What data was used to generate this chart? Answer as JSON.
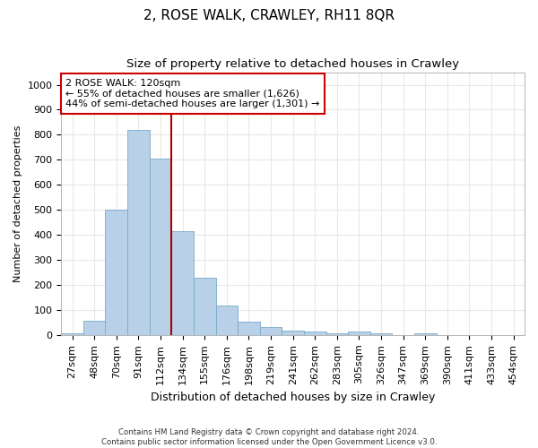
{
  "title": "2, ROSE WALK, CRAWLEY, RH11 8QR",
  "subtitle": "Size of property relative to detached houses in Crawley",
  "xlabel": "Distribution of detached houses by size in Crawley",
  "ylabel": "Number of detached properties",
  "categories": [
    "27sqm",
    "48sqm",
    "70sqm",
    "91sqm",
    "112sqm",
    "134sqm",
    "155sqm",
    "176sqm",
    "198sqm",
    "219sqm",
    "241sqm",
    "262sqm",
    "283sqm",
    "305sqm",
    "326sqm",
    "347sqm",
    "369sqm",
    "390sqm",
    "411sqm",
    "433sqm",
    "454sqm"
  ],
  "values": [
    8,
    57,
    500,
    820,
    705,
    415,
    228,
    117,
    52,
    33,
    16,
    15,
    8,
    15,
    8,
    0,
    8,
    0,
    0,
    0,
    0
  ],
  "bar_color": "#b8d0e8",
  "bar_edge_color": "#7aaac8",
  "property_line_x": 4.5,
  "property_line_color": "#aa0000",
  "annotation_line1": "2 ROSE WALK: 120sqm",
  "annotation_line2": "← 55% of detached houses are smaller (1,626)",
  "annotation_line3": "44% of semi-detached houses are larger (1,301) →",
  "annotation_box_color": "#cc0000",
  "ylim": [
    0,
    1050
  ],
  "yticks": [
    0,
    100,
    200,
    300,
    400,
    500,
    600,
    700,
    800,
    900,
    1000
  ],
  "footer_line1": "Contains HM Land Registry data © Crown copyright and database right 2024.",
  "footer_line2": "Contains public sector information licensed under the Open Government Licence v3.0.",
  "background_color": "#ffffff",
  "plot_background_color": "#ffffff",
  "grid_color": "#e8e8e8",
  "title_fontsize": 11,
  "subtitle_fontsize": 9.5,
  "xlabel_fontsize": 9,
  "ylabel_fontsize": 8,
  "tick_fontsize": 8,
  "annotation_fontsize": 8
}
